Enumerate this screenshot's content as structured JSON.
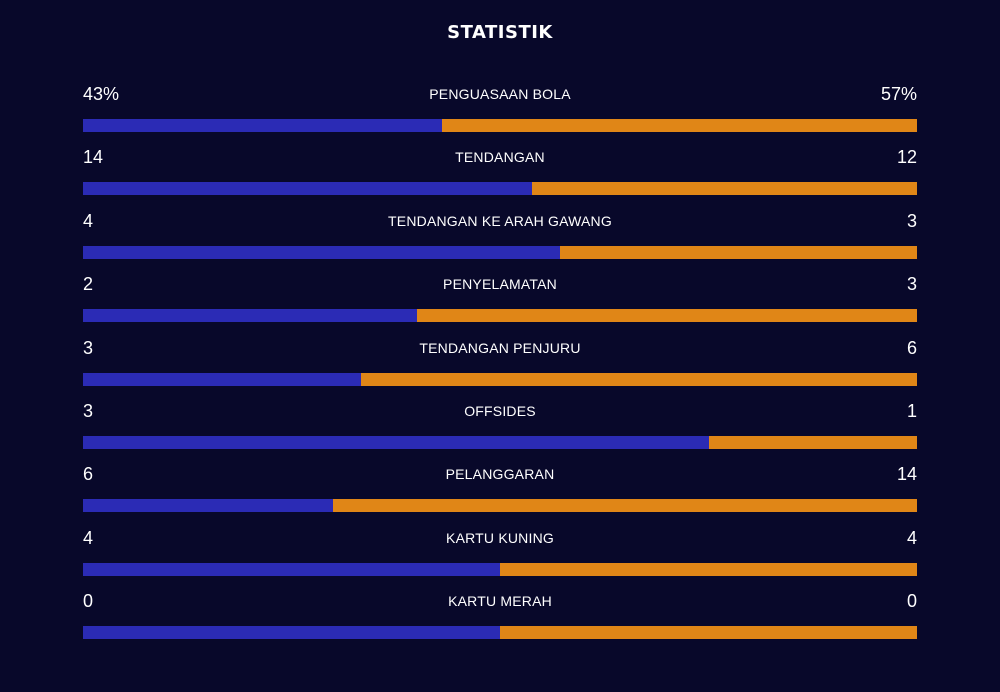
{
  "title": "STATISTIK",
  "colors": {
    "background": "#08082a",
    "home": "#2b2bb5",
    "away": "#e08617",
    "text": "#ffffff"
  },
  "stats": [
    {
      "label": "PENGUASAAN BOLA",
      "left": "43%",
      "right": "57%",
      "left_share": 0.43
    },
    {
      "label": "TENDANGAN",
      "left": "14",
      "right": "12",
      "left_share": 0.5385
    },
    {
      "label": "TENDANGAN KE ARAH GAWANG",
      "left": "4",
      "right": "3",
      "left_share": 0.5714
    },
    {
      "label": "PENYELAMATAN",
      "left": "2",
      "right": "3",
      "left_share": 0.4
    },
    {
      "label": "TENDANGAN PENJURU",
      "left": "3",
      "right": "6",
      "left_share": 0.3333
    },
    {
      "label": "OFFSIDES",
      "left": "3",
      "right": "1",
      "left_share": 0.75
    },
    {
      "label": "PELANGGARAN",
      "left": "6",
      "right": "14",
      "left_share": 0.3
    },
    {
      "label": "KARTU KUNING",
      "left": "4",
      "right": "4",
      "left_share": 0.5
    },
    {
      "label": "KARTU MERAH",
      "left": "0",
      "right": "0",
      "left_share": 0.5
    }
  ]
}
